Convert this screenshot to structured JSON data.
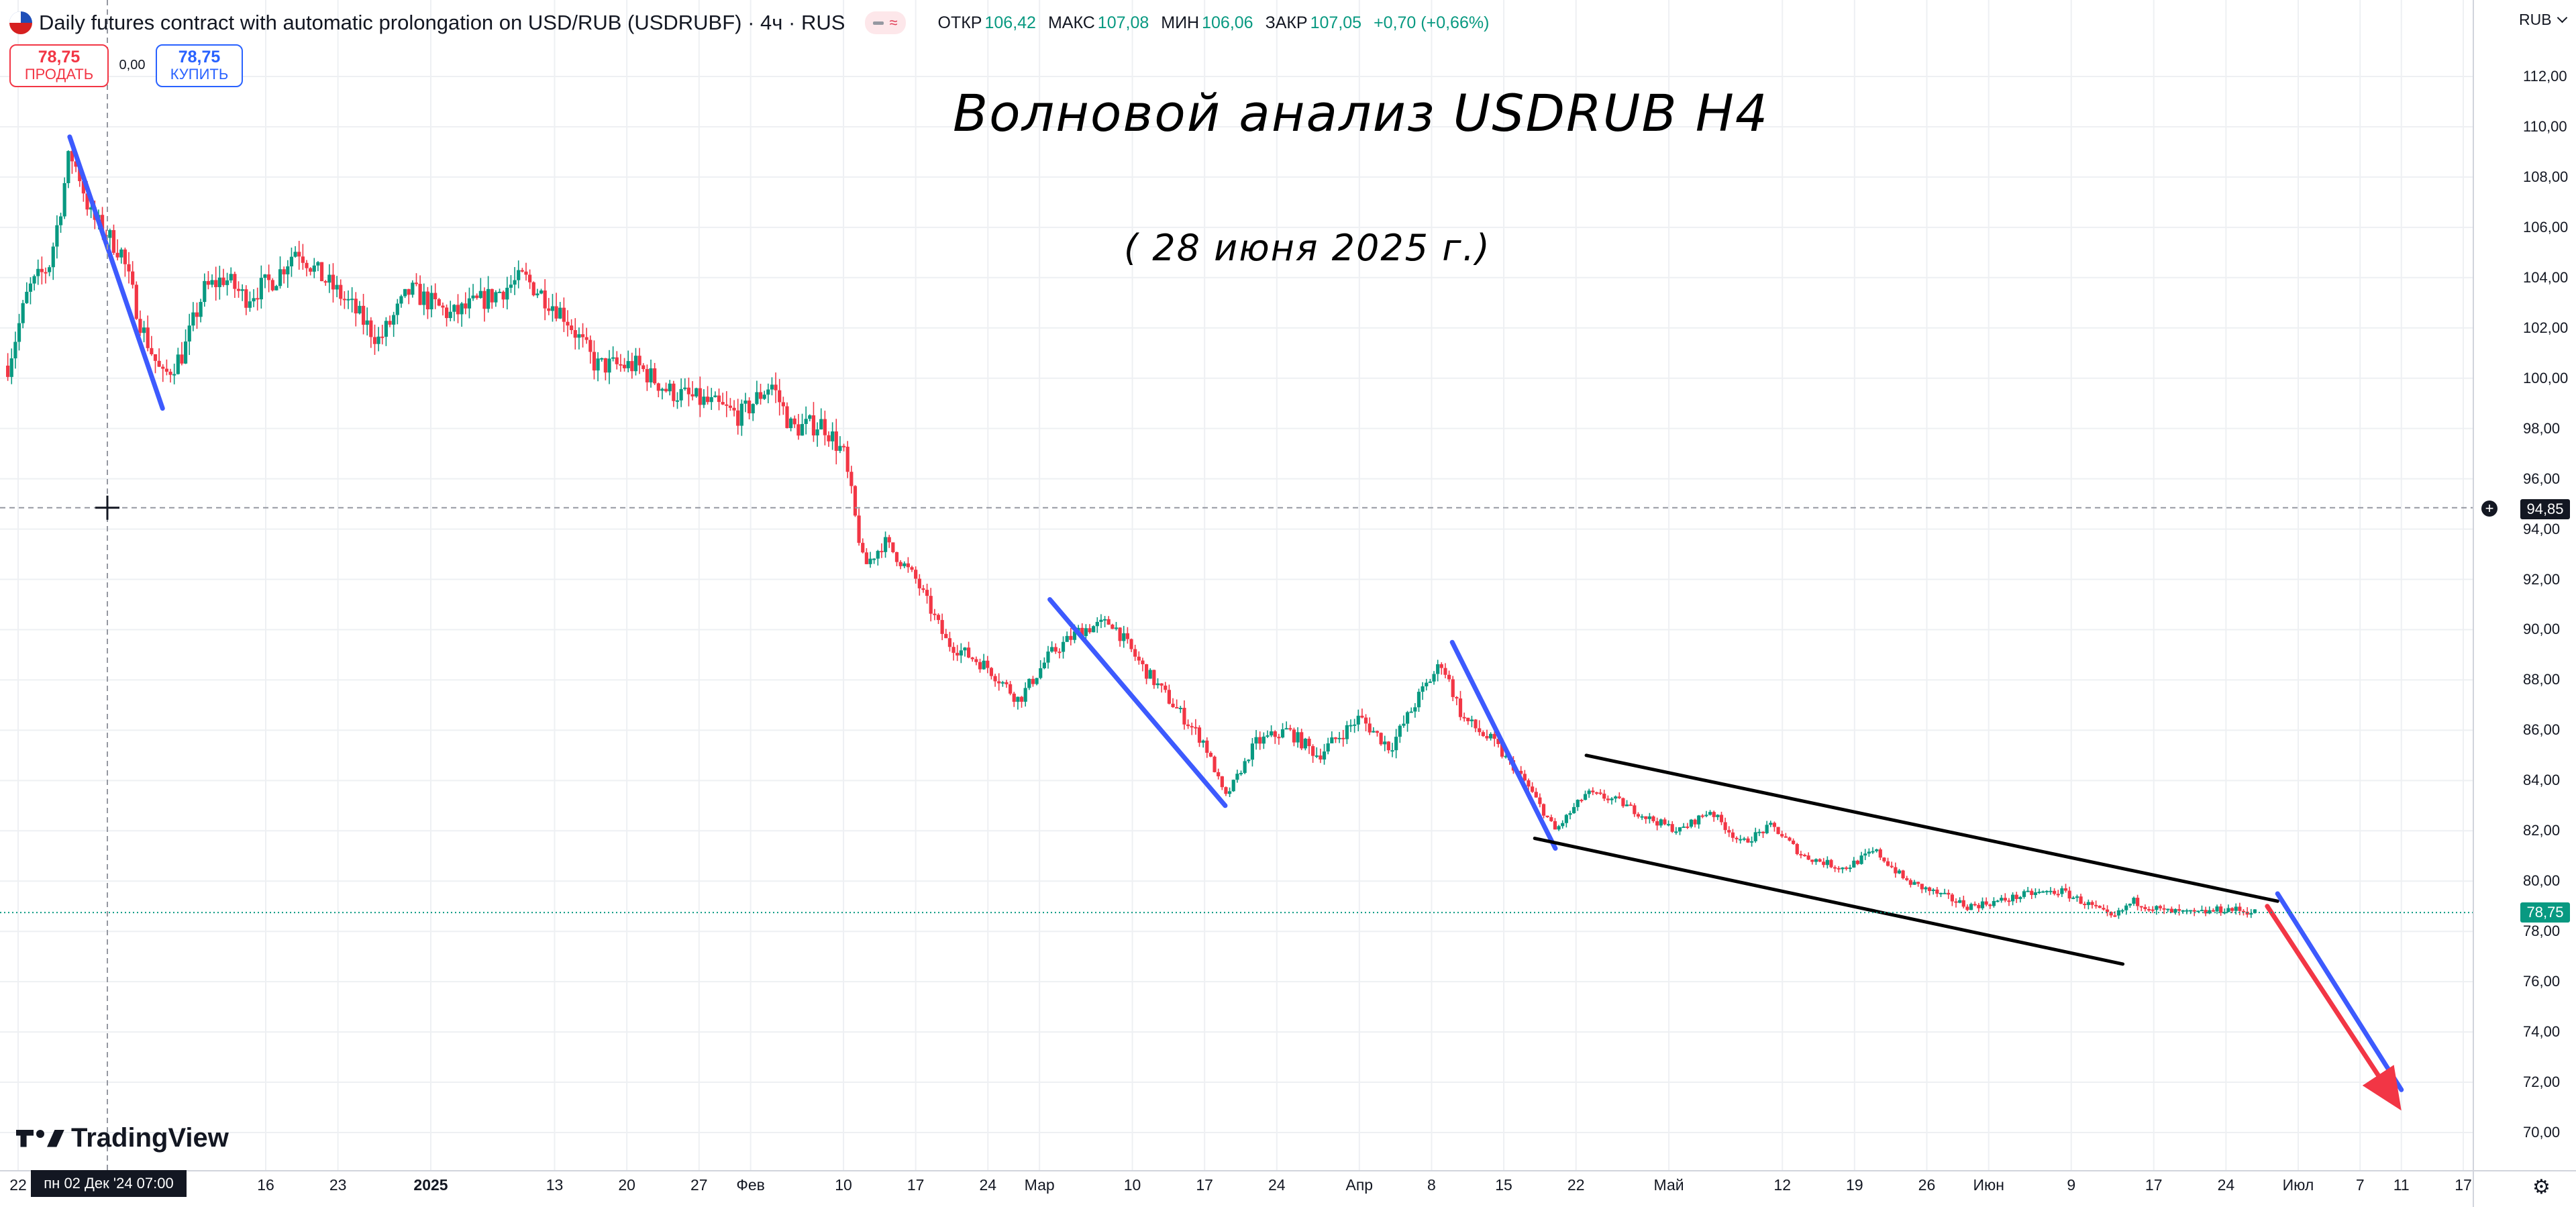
{
  "header": {
    "symbol_title": "Daily futures contract with automatic prolongation on USD/RUB (USDRUBF) · 4ч · RUS",
    "badge_symbol": "≈",
    "ohlc": [
      {
        "label": "ОТКР",
        "value": "106,42"
      },
      {
        "label": "МАКС",
        "value": "107,08"
      },
      {
        "label": "МИН",
        "value": "106,06"
      },
      {
        "label": "ЗАКР",
        "value": "107,05"
      },
      {
        "label": "",
        "value": "+0,70 (+0,66%)"
      }
    ]
  },
  "trade": {
    "sell_price": "78,75",
    "sell_label": "ПРОДАТЬ",
    "buy_price": "78,75",
    "buy_label": "КУПИТЬ",
    "spread": "0,00"
  },
  "annotations": {
    "title": "Волновой анализ USDRUB H4",
    "date": "( 28 июня 2025 г.)"
  },
  "price_scale": {
    "currency": "RUB",
    "last_price": "78,75",
    "crosshair_price": "94,85",
    "crosshair_time": "пн 02 Дек '24   07:00"
  },
  "branding": "TradingView",
  "icons": {
    "flag": "us-ru-flag-icon",
    "settings": "gear-icon",
    "crosshair": "crosshair-icon"
  },
  "colors": {
    "up": "#089981",
    "down": "#f23645",
    "wave": "#3d5afe",
    "channel": "#000000",
    "projection": "#f23645"
  },
  "chart_data": {
    "type": "candlestick",
    "symbol": "USDRUBF",
    "timeframe": "4ч",
    "ylim": [
      69,
      113
    ],
    "y_ticks": [
      "70,00",
      "72,00",
      "74,00",
      "76,00",
      "78,00",
      "80,00",
      "82,00",
      "84,00",
      "86,00",
      "88,00",
      "90,00",
      "92,00",
      "94,00",
      "96,00",
      "98,00",
      "100,00",
      "102,00",
      "104,00",
      "106,00",
      "108,00",
      "110,00",
      "112,00"
    ],
    "x_ticks": [
      {
        "label": "22",
        "date": "2024-11-22"
      },
      {
        "label": "16",
        "date": "2024-12-16"
      },
      {
        "label": "23",
        "date": "2024-12-23"
      },
      {
        "label": "2025",
        "date": "2025-01-01"
      },
      {
        "label": "13",
        "date": "2025-01-13"
      },
      {
        "label": "20",
        "date": "2025-01-20"
      },
      {
        "label": "27",
        "date": "2025-01-27"
      },
      {
        "label": "Фев",
        "date": "2025-02-01"
      },
      {
        "label": "10",
        "date": "2025-02-10"
      },
      {
        "label": "17",
        "date": "2025-02-17"
      },
      {
        "label": "24",
        "date": "2025-02-24"
      },
      {
        "label": "Мар",
        "date": "2025-03-01"
      },
      {
        "label": "10",
        "date": "2025-03-10"
      },
      {
        "label": "17",
        "date": "2025-03-17"
      },
      {
        "label": "24",
        "date": "2025-03-24"
      },
      {
        "label": "Апр",
        "date": "2025-04-01"
      },
      {
        "label": "8",
        "date": "2025-04-08"
      },
      {
        "label": "15",
        "date": "2025-04-15"
      },
      {
        "label": "22",
        "date": "2025-04-22"
      },
      {
        "label": "Май",
        "date": "2025-05-01"
      },
      {
        "label": "12",
        "date": "2025-05-12"
      },
      {
        "label": "19",
        "date": "2025-05-19"
      },
      {
        "label": "26",
        "date": "2025-05-26"
      },
      {
        "label": "Июн",
        "date": "2025-06-01"
      },
      {
        "label": "9",
        "date": "2025-06-09"
      },
      {
        "label": "17",
        "date": "2025-06-17"
      },
      {
        "label": "24",
        "date": "2025-06-24"
      },
      {
        "label": "Июл",
        "date": "2025-07-01"
      },
      {
        "label": "7",
        "date": "2025-07-07"
      },
      {
        "label": "11",
        "date": "2025-07-11"
      },
      {
        "label": "17",
        "date": "2025-07-17"
      }
    ],
    "close_path": [
      [
        "2024-11-21",
        100.5
      ],
      [
        "2024-11-23",
        103.5
      ],
      [
        "2024-11-25",
        104.5
      ],
      [
        "2024-11-26",
        106.5
      ],
      [
        "2024-11-27",
        109.0
      ],
      [
        "2024-11-28",
        108.0
      ],
      [
        "2024-11-29",
        106.5
      ],
      [
        "2024-12-02",
        105.0
      ],
      [
        "2024-12-04",
        102.0
      ],
      [
        "2024-12-06",
        100.0
      ],
      [
        "2024-12-08",
        101.0
      ],
      [
        "2024-12-10",
        103.5
      ],
      [
        "2024-12-12",
        104.0
      ],
      [
        "2024-12-14",
        103.2
      ],
      [
        "2024-12-17",
        104.0
      ],
      [
        "2024-12-19",
        105.2
      ],
      [
        "2024-12-21",
        104.2
      ],
      [
        "2024-12-24",
        103.0
      ],
      [
        "2024-12-27",
        101.5
      ],
      [
        "2024-12-30",
        103.5
      ],
      [
        "2025-01-03",
        102.5
      ],
      [
        "2025-01-07",
        103.3
      ],
      [
        "2025-01-10",
        104.0
      ],
      [
        "2025-01-14",
        102.5
      ],
      [
        "2025-01-17",
        100.5
      ],
      [
        "2025-01-21",
        100.5
      ],
      [
        "2025-01-24",
        99.5
      ],
      [
        "2025-01-28",
        99.0
      ],
      [
        "2025-01-31",
        98.5
      ],
      [
        "2025-02-03",
        99.8
      ],
      [
        "2025-02-05",
        98.0
      ],
      [
        "2025-02-08",
        98.2
      ],
      [
        "2025-02-10",
        97.0
      ],
      [
        "2025-02-12",
        92.5
      ],
      [
        "2025-02-14",
        93.5
      ],
      [
        "2025-02-17",
        92.0
      ],
      [
        "2025-02-20",
        89.5
      ],
      [
        "2025-02-24",
        88.5
      ],
      [
        "2025-02-27",
        87.2
      ],
      [
        "2025-03-02",
        89.0
      ],
      [
        "2025-03-05",
        90.0
      ],
      [
        "2025-03-08",
        90.3
      ],
      [
        "2025-03-11",
        88.5
      ],
      [
        "2025-03-14",
        87.0
      ],
      [
        "2025-03-17",
        85.5
      ],
      [
        "2025-03-19",
        83.3
      ],
      [
        "2025-03-22",
        85.5
      ],
      [
        "2025-03-25",
        86.0
      ],
      [
        "2025-03-28",
        85.0
      ],
      [
        "2025-04-01",
        86.5
      ],
      [
        "2025-04-04",
        85.3
      ],
      [
        "2025-04-07",
        87.5
      ],
      [
        "2025-04-09",
        88.7
      ],
      [
        "2025-04-11",
        86.5
      ],
      [
        "2025-04-14",
        85.5
      ],
      [
        "2025-04-17",
        84.0
      ],
      [
        "2025-04-20",
        82.0
      ],
      [
        "2025-04-23",
        83.5
      ],
      [
        "2025-04-26",
        83.2
      ],
      [
        "2025-04-29",
        82.5
      ],
      [
        "2025-05-02",
        82.0
      ],
      [
        "2025-05-05",
        82.8
      ],
      [
        "2025-05-08",
        81.5
      ],
      [
        "2025-05-11",
        82.2
      ],
      [
        "2025-05-14",
        81.0
      ],
      [
        "2025-05-18",
        80.5
      ],
      [
        "2025-05-21",
        81.2
      ],
      [
        "2025-05-24",
        80.0
      ],
      [
        "2025-05-27",
        79.5
      ],
      [
        "2025-05-30",
        79.0
      ],
      [
        "2025-06-02",
        79.2
      ],
      [
        "2025-06-05",
        79.5
      ],
      [
        "2025-06-08",
        79.6
      ],
      [
        "2025-06-11",
        79.0
      ],
      [
        "2025-06-13",
        78.5
      ],
      [
        "2025-06-15",
        79.2
      ],
      [
        "2025-06-18",
        78.8
      ],
      [
        "2025-06-21",
        78.7
      ],
      [
        "2025-06-24",
        78.9
      ],
      [
        "2025-06-27",
        78.75
      ]
    ],
    "lines": [
      {
        "kind": "wave",
        "from": [
          "2024-11-27",
          109.6
        ],
        "to": [
          "2024-12-06",
          98.8
        ]
      },
      {
        "kind": "wave",
        "from": [
          "2025-03-02",
          91.2
        ],
        "to": [
          "2025-03-19",
          83.0
        ]
      },
      {
        "kind": "wave",
        "from": [
          "2025-04-10",
          89.5
        ],
        "to": [
          "2025-04-20",
          81.3
        ]
      },
      {
        "kind": "channel",
        "from": [
          "2025-04-23",
          85.0
        ],
        "to": [
          "2025-06-29",
          79.2
        ]
      },
      {
        "kind": "channel",
        "from": [
          "2025-04-18",
          81.7
        ],
        "to": [
          "2025-06-14",
          76.7
        ]
      },
      {
        "kind": "wave",
        "from": [
          "2025-06-29",
          79.5
        ],
        "to": [
          "2025-07-11",
          71.7
        ]
      },
      {
        "kind": "projection",
        "from": [
          "2025-06-28",
          79.0
        ],
        "to": [
          "2025-07-10",
          71.5
        ]
      }
    ],
    "grid": true
  }
}
